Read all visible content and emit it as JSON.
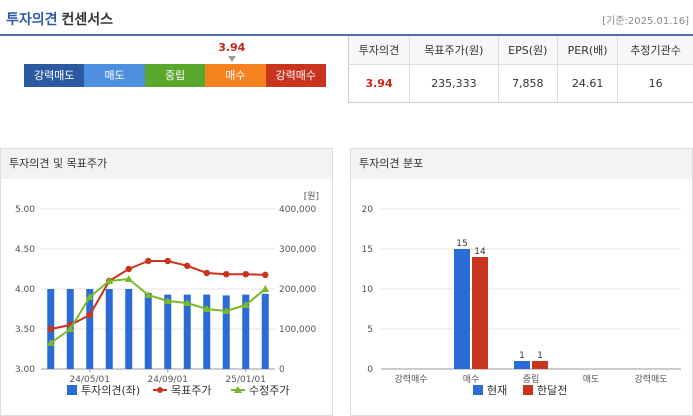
{
  "header": {
    "title_main": "투자의견",
    "title_sub": "컨센서스",
    "date": "[기준:2025.01.16]"
  },
  "opinion": {
    "value": "3.94",
    "segments": [
      {
        "label": "강력매도",
        "color": "#2c5aa0"
      },
      {
        "label": "매도",
        "color": "#4f8fe0"
      },
      {
        "label": "중립",
        "color": "#59a82b"
      },
      {
        "label": "매수",
        "color": "#f5821f"
      },
      {
        "label": "강력매수",
        "color": "#c8341d"
      }
    ]
  },
  "consensus_table": {
    "headers": [
      "투자의견",
      "목표주가(원)",
      "EPS(원)",
      "PER(배)",
      "추정기관수"
    ],
    "values": [
      "3.94",
      "235,333",
      "7,858",
      "24.61",
      "16"
    ]
  },
  "panel_left": {
    "title": "투자의견 및 목표주가",
    "unit": "[원]",
    "legend": [
      "투자의견(좌)",
      "목표주가",
      "수정주가"
    ]
  },
  "panel_right": {
    "title": "투자의견 분포",
    "legend": [
      "현재",
      "한달전"
    ]
  },
  "chart_data": [
    {
      "type": "bar",
      "title": "투자의견 및 목표주가",
      "x_tick_labels": [
        "24/05/01",
        "24/09/01",
        "25/01/01"
      ],
      "y_left_ticks": [
        "5.00",
        "4.50",
        "4.00",
        "3.50",
        "3.00"
      ],
      "y_left_range": [
        3.0,
        5.0
      ],
      "y_right_ticks": [
        "400,000",
        "300,000",
        "200,000",
        "100,000",
        "0"
      ],
      "y_right_range": [
        0,
        400000
      ],
      "series": [
        {
          "name": "투자의견(좌)",
          "type": "bar",
          "color": "#2b6bd6",
          "values": [
            4.0,
            4.0,
            4.0,
            4.0,
            4.0,
            3.95,
            3.93,
            3.93,
            3.93,
            3.92,
            3.93,
            3.94
          ]
        },
        {
          "name": "목표주가",
          "type": "line",
          "color": "#c8341d",
          "values": [
            100000,
            110000,
            135000,
            220000,
            250000,
            270000,
            270000,
            258000,
            240000,
            237000,
            237000,
            235333
          ]
        },
        {
          "name": "수정주가",
          "type": "line",
          "color": "#7ab829",
          "values": [
            65000,
            100000,
            180000,
            220000,
            225000,
            185000,
            170000,
            165000,
            150000,
            145000,
            160000,
            200000
          ]
        }
      ],
      "grid": true,
      "legend_position": "bottom"
    },
    {
      "type": "bar",
      "title": "투자의견 분포",
      "categories": [
        "강력매수",
        "매수",
        "중립",
        "매도",
        "강력매도"
      ],
      "y_ticks": [
        "20",
        "15",
        "10",
        "5",
        "0"
      ],
      "ylim": [
        0,
        20
      ],
      "series": [
        {
          "name": "현재",
          "color": "#2b6bd6",
          "values": [
            0,
            15,
            1,
            0,
            0
          ],
          "labels": [
            "",
            "15",
            "1",
            "",
            ""
          ]
        },
        {
          "name": "한달전",
          "color": "#c8341d",
          "values": [
            0,
            14,
            1,
            0,
            0
          ],
          "labels": [
            "",
            "14",
            "1",
            "",
            ""
          ]
        }
      ],
      "grid": true,
      "legend_position": "bottom"
    }
  ]
}
